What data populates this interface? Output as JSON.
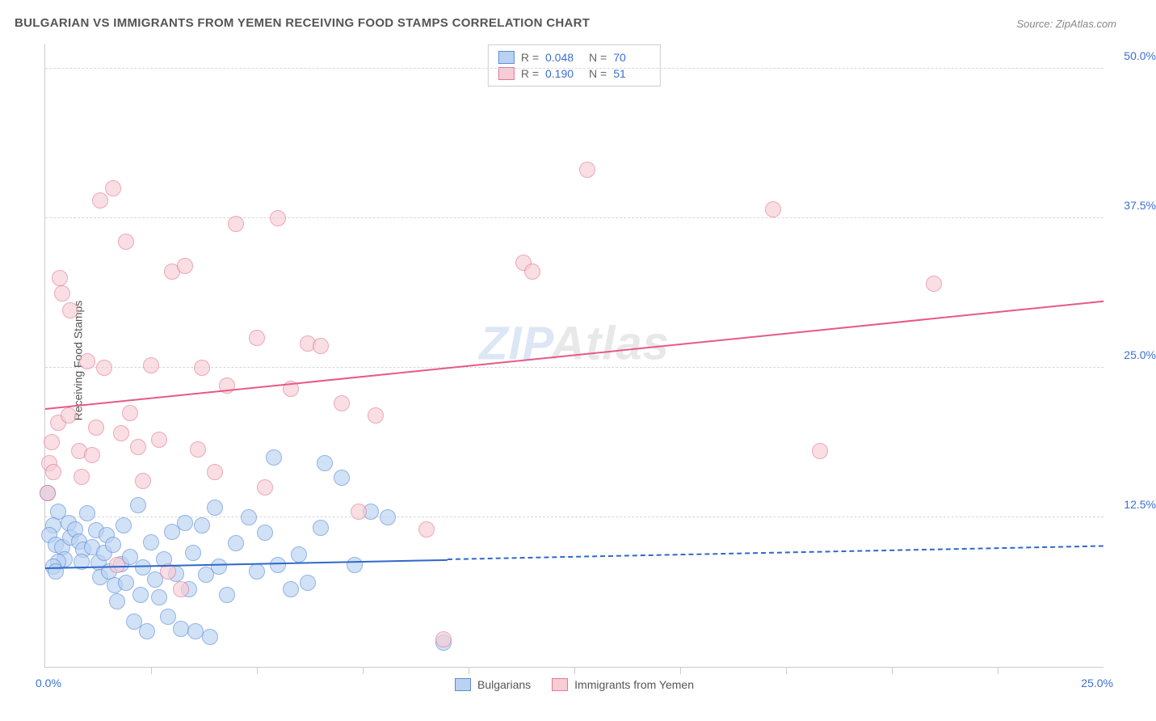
{
  "title": "BULGARIAN VS IMMIGRANTS FROM YEMEN RECEIVING FOOD STAMPS CORRELATION CHART",
  "source": "Source: ZipAtlas.com",
  "ylabel": "Receiving Food Stamps",
  "watermark": {
    "part1": "ZIP",
    "part2": "Atlas"
  },
  "chart": {
    "type": "scatter",
    "background_color": "#ffffff",
    "grid_color": "#d8d8d8",
    "axis_color": "#cccccc",
    "xlim": [
      0,
      25
    ],
    "ylim": [
      0,
      52
    ],
    "x_ticks_label": {
      "left": "0.0%",
      "right": "25.0%"
    },
    "x_minor_ticks": [
      2.5,
      5.0,
      7.5,
      10.0,
      12.5,
      15.0,
      17.5,
      20.0,
      22.5
    ],
    "y_gridlines": [
      {
        "v": 12.5,
        "label": "12.5%"
      },
      {
        "v": 25.0,
        "label": "25.0%"
      },
      {
        "v": 37.5,
        "label": "37.5%"
      },
      {
        "v": 50.0,
        "label": "50.0%"
      }
    ],
    "label_color": "#3b6fd4",
    "label_fontsize": 14,
    "marker_radius": 9,
    "marker_border_width": 1,
    "series": [
      {
        "name": "Bulgarians",
        "fill": "#b9d2f2",
        "stroke": "#5a8cd6",
        "fill_opacity": 0.65,
        "stats": {
          "R": "0.048",
          "N": "70"
        },
        "trend": {
          "x1": 0,
          "y1": 8.2,
          "x2": 25,
          "y2": 10.0,
          "solid_until_x": 9.5,
          "color": "#2f68c9"
        },
        "points": [
          [
            0.05,
            14.5
          ],
          [
            0.3,
            13.0
          ],
          [
            0.2,
            11.8
          ],
          [
            0.1,
            11.0
          ],
          [
            0.25,
            10.2
          ],
          [
            0.4,
            10.0
          ],
          [
            0.45,
            9.0
          ],
          [
            0.3,
            8.8
          ],
          [
            0.2,
            8.4
          ],
          [
            0.25,
            8.0
          ],
          [
            0.55,
            12.0
          ],
          [
            0.6,
            10.8
          ],
          [
            0.7,
            11.5
          ],
          [
            0.8,
            10.5
          ],
          [
            0.9,
            9.8
          ],
          [
            0.85,
            8.8
          ],
          [
            1.0,
            12.8
          ],
          [
            1.1,
            10.0
          ],
          [
            1.2,
            11.4
          ],
          [
            1.25,
            8.7
          ],
          [
            1.3,
            7.5
          ],
          [
            1.4,
            9.5
          ],
          [
            1.45,
            11.0
          ],
          [
            1.5,
            8.0
          ],
          [
            1.6,
            10.2
          ],
          [
            1.65,
            6.8
          ],
          [
            1.7,
            5.5
          ],
          [
            1.8,
            8.6
          ],
          [
            1.85,
            11.8
          ],
          [
            1.9,
            7.0
          ],
          [
            2.0,
            9.2
          ],
          [
            2.1,
            3.8
          ],
          [
            2.2,
            13.5
          ],
          [
            2.25,
            6.0
          ],
          [
            2.3,
            8.3
          ],
          [
            2.4,
            3.0
          ],
          [
            2.5,
            10.4
          ],
          [
            2.6,
            7.3
          ],
          [
            2.7,
            5.8
          ],
          [
            2.8,
            9.0
          ],
          [
            2.9,
            4.2
          ],
          [
            3.0,
            11.3
          ],
          [
            3.1,
            7.8
          ],
          [
            3.2,
            3.2
          ],
          [
            3.3,
            12.0
          ],
          [
            3.4,
            6.5
          ],
          [
            3.5,
            9.5
          ],
          [
            3.55,
            3.0
          ],
          [
            3.7,
            11.8
          ],
          [
            3.8,
            7.7
          ],
          [
            3.9,
            2.5
          ],
          [
            4.0,
            13.3
          ],
          [
            4.1,
            8.4
          ],
          [
            4.3,
            6.0
          ],
          [
            4.5,
            10.3
          ],
          [
            4.8,
            12.5
          ],
          [
            5.0,
            8.0
          ],
          [
            5.2,
            11.2
          ],
          [
            5.4,
            17.5
          ],
          [
            5.5,
            8.5
          ],
          [
            5.8,
            6.5
          ],
          [
            6.0,
            9.4
          ],
          [
            6.2,
            7.0
          ],
          [
            6.5,
            11.6
          ],
          [
            6.6,
            17.0
          ],
          [
            7.0,
            15.8
          ],
          [
            7.3,
            8.5
          ],
          [
            7.7,
            13.0
          ],
          [
            8.1,
            12.5
          ],
          [
            9.4,
            2.0
          ]
        ]
      },
      {
        "name": "Immigrants from Yemen",
        "fill": "#f6cdd6",
        "stroke": "#e27a93",
        "fill_opacity": 0.65,
        "stats": {
          "R": "0.190",
          "N": "51"
        },
        "trend": {
          "x1": 0,
          "y1": 21.5,
          "x2": 25,
          "y2": 30.5,
          "solid_until_x": 25,
          "color": "#e65a82"
        },
        "points": [
          [
            0.05,
            14.5
          ],
          [
            0.1,
            17.0
          ],
          [
            0.15,
            18.8
          ],
          [
            0.2,
            16.3
          ],
          [
            0.3,
            20.4
          ],
          [
            0.35,
            32.5
          ],
          [
            0.4,
            31.2
          ],
          [
            0.6,
            29.8
          ],
          [
            0.55,
            21.0
          ],
          [
            0.8,
            18.0
          ],
          [
            0.85,
            15.9
          ],
          [
            1.0,
            25.5
          ],
          [
            1.1,
            17.7
          ],
          [
            1.2,
            20.0
          ],
          [
            1.3,
            39.0
          ],
          [
            1.4,
            25.0
          ],
          [
            1.6,
            40.0
          ],
          [
            1.7,
            8.5
          ],
          [
            1.8,
            19.5
          ],
          [
            1.9,
            35.5
          ],
          [
            2.0,
            21.2
          ],
          [
            2.2,
            18.4
          ],
          [
            2.3,
            15.5
          ],
          [
            2.5,
            25.2
          ],
          [
            2.7,
            19.0
          ],
          [
            2.9,
            8.0
          ],
          [
            3.0,
            33.0
          ],
          [
            3.2,
            6.5
          ],
          [
            3.3,
            33.5
          ],
          [
            3.6,
            18.2
          ],
          [
            3.7,
            25.0
          ],
          [
            4.0,
            16.3
          ],
          [
            4.3,
            23.5
          ],
          [
            4.5,
            37.0
          ],
          [
            5.0,
            27.5
          ],
          [
            5.2,
            15.0
          ],
          [
            5.5,
            37.5
          ],
          [
            5.8,
            23.2
          ],
          [
            6.2,
            27.0
          ],
          [
            6.5,
            26.8
          ],
          [
            7.0,
            22.0
          ],
          [
            7.4,
            13.0
          ],
          [
            7.8,
            21.0
          ],
          [
            9.0,
            11.5
          ],
          [
            9.4,
            2.3
          ],
          [
            11.3,
            33.8
          ],
          [
            11.5,
            33.0
          ],
          [
            12.8,
            41.5
          ],
          [
            17.2,
            38.2
          ],
          [
            18.3,
            18.0
          ],
          [
            21.0,
            32.0
          ]
        ]
      }
    ],
    "legend": {
      "items": [
        {
          "label": "Bulgarians",
          "fill": "#b9d2f2",
          "stroke": "#5a8cd6"
        },
        {
          "label": "Immigrants from Yemen",
          "fill": "#f6cdd6",
          "stroke": "#e27a93"
        }
      ]
    }
  }
}
